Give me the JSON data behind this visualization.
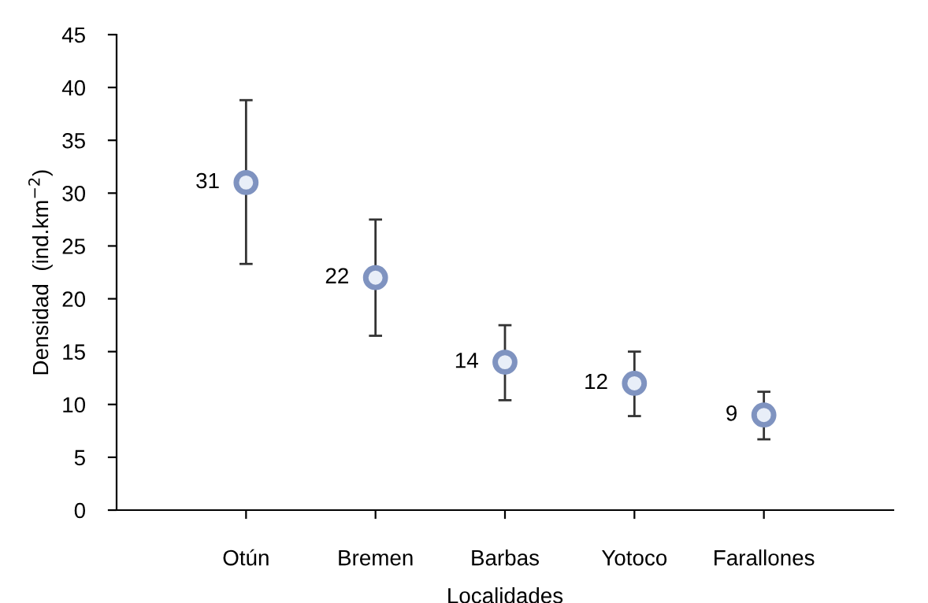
{
  "chart_data": {
    "type": "scatter",
    "xlabel": "Localidades",
    "ylabel": "Densidad  (ind.km$^{−2}$)",
    "categories": [
      "Otún",
      "Bremen",
      "Barbas",
      "Yotoco",
      "Farallones"
    ],
    "series": [
      {
        "color": "#7f93c0",
        "values": [
          31,
          22,
          14,
          12,
          9
        ],
        "errors": [
          [
            23.3,
            38.8
          ],
          [
            16.5,
            27.5
          ],
          [
            10.4,
            17.5
          ],
          [
            8.9,
            15.0
          ],
          [
            6.7,
            11.2
          ]
        ]
      }
    ],
    "data_labels": true,
    "marker": "circle",
    "ylim": [
      0,
      45
    ],
    "yticks": [
      0,
      5,
      10,
      15,
      20,
      25,
      30,
      35,
      40,
      45
    ],
    "grid": false,
    "legend": false
  }
}
